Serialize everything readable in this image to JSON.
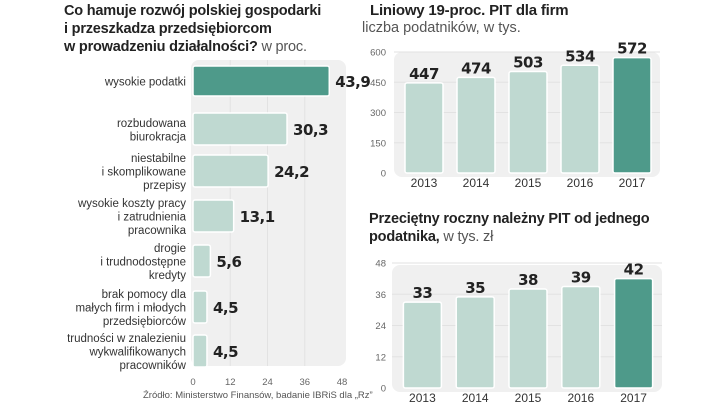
{
  "chart_data": [
    {
      "type": "bar",
      "orientation": "horizontal",
      "title": "Co hamuje rozwój polskiej gospodarki i przeszkadza przedsiębiorcom w prowadzeniu działalności?",
      "title_lines": [
        "Co hamuje rozwój polskiej gospodarki",
        "i przeszkadza przedsiębiorcom",
        "w prowadzeniu działalności?"
      ],
      "unit": "w proc.",
      "categories": [
        [
          "wysokie podatki"
        ],
        [
          "rozbudowana",
          "biurokracja"
        ],
        [
          "niestabilne",
          "i skomplikowane",
          "przepisy"
        ],
        [
          "wysokie koszty pracy",
          "i zatrudnienia",
          "pracownika"
        ],
        [
          "drogie",
          "i trudnodostępne",
          "kredyty"
        ],
        [
          "brak pomocy dla",
          "małych firm i młodych",
          "przedsiębiorców"
        ],
        [
          "trudności w znalezieniu",
          "wykwalifikowanych",
          "pracowników"
        ]
      ],
      "values": [
        43.9,
        30.3,
        24.2,
        13.1,
        5.6,
        4.5,
        4.5
      ],
      "value_labels": [
        "43,9",
        "30,3",
        "24,2",
        "13,1",
        "5,6",
        "4,5",
        "4,5"
      ],
      "highlight_index": 0,
      "xlim": [
        0,
        48
      ],
      "xticks": [
        "0",
        "12",
        "24",
        "36",
        "48"
      ],
      "xtick_values": [
        0,
        12,
        24,
        36,
        48
      ],
      "grid": true
    },
    {
      "type": "bar",
      "orientation": "vertical",
      "title": "Liniowy 19-proc. PIT dla firm",
      "subtitle": "liczba podatników, w tys.",
      "categories": [
        "2013",
        "2014",
        "2015",
        "2016",
        "2017"
      ],
      "values": [
        447,
        474,
        503,
        534,
        572
      ],
      "value_labels": [
        "447",
        "474",
        "503",
        "534",
        "572"
      ],
      "highlight_index": 4,
      "ylim": [
        0,
        600
      ],
      "yticks": [
        "0",
        "150",
        "300",
        "450",
        "600"
      ],
      "ytick_values": [
        0,
        150,
        300,
        450,
        600
      ],
      "grid": true
    },
    {
      "type": "bar",
      "orientation": "vertical",
      "title": "Przeciętny roczny należny PIT od jednego podatnika,",
      "title_lines": [
        "Przeciętny roczny należny PIT od jednego",
        "podatnika,"
      ],
      "unit": "w tys. zł",
      "categories": [
        "2013",
        "2014",
        "2015",
        "2016",
        "2017"
      ],
      "values": [
        33,
        35,
        38,
        39,
        42
      ],
      "value_labels": [
        "33",
        "35",
        "38",
        "39",
        "42"
      ],
      "highlight_index": 4,
      "ylim": [
        0,
        48
      ],
      "yticks": [
        "0",
        "12",
        "24",
        "36",
        "48"
      ],
      "ytick_values": [
        0,
        12,
        24,
        36,
        48
      ],
      "grid": true
    }
  ],
  "source": "Źródło: Ministerstwo Finansów, badanie IBRiS dla „Rz”",
  "colors": {
    "highlight": "#4e9a8a",
    "normal": "#bfd9d1",
    "plot_bg": "#f0f0f0",
    "grid": "#e2e2e2",
    "text": "#222222",
    "muted": "#555555"
  }
}
